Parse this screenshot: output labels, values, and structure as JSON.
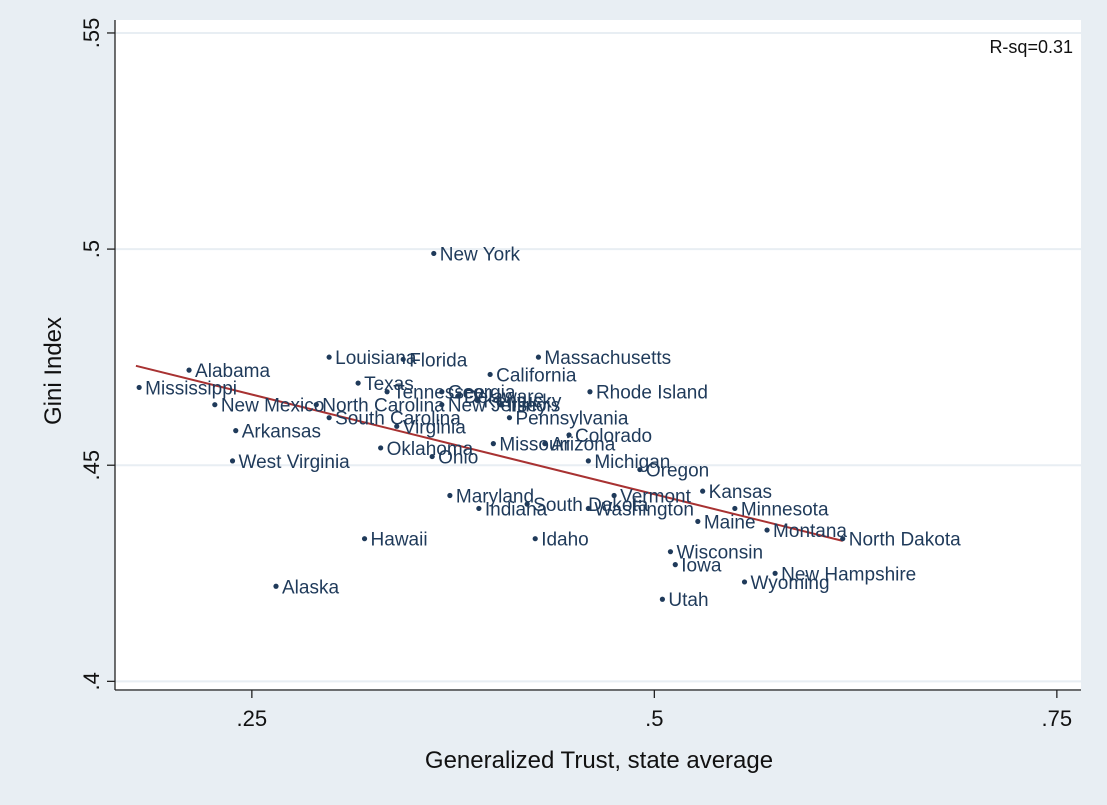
{
  "chart_data": {
    "type": "scatter",
    "xlabel": "Generalized Trust, state average",
    "ylabel": "Gini Index",
    "annotation": "R-sq=0.31",
    "xlim": [
      0.165,
      0.765
    ],
    "ylim": [
      0.398,
      0.553
    ],
    "xticks": [
      {
        "value": 0.25,
        "label": ".25"
      },
      {
        "value": 0.5,
        "label": ".5"
      },
      {
        "value": 0.75,
        "label": ".75"
      }
    ],
    "yticks": [
      {
        "value": 0.4,
        "label": ".4"
      },
      {
        "value": 0.45,
        "label": ".45"
      },
      {
        "value": 0.5,
        "label": ".5"
      },
      {
        "value": 0.55,
        "label": ".55"
      }
    ],
    "grid": true,
    "colors": {
      "points": "#1f3a5a",
      "fit_line": "#a83232",
      "grid": "#e8eef3",
      "background": "#ffffff"
    },
    "fit_line": {
      "x": [
        0.178,
        0.617
      ],
      "y": [
        0.473,
        0.4325
      ]
    },
    "points": [
      {
        "label": "New York",
        "x": 0.363,
        "y": 0.499
      },
      {
        "label": "Louisiana",
        "x": 0.298,
        "y": 0.475
      },
      {
        "label": "Florida",
        "x": 0.344,
        "y": 0.4745
      },
      {
        "label": "Massachusetts",
        "x": 0.428,
        "y": 0.475
      },
      {
        "label": "Alabama",
        "x": 0.211,
        "y": 0.472
      },
      {
        "label": "California",
        "x": 0.398,
        "y": 0.471
      },
      {
        "label": "Texas",
        "x": 0.316,
        "y": 0.469
      },
      {
        "label": "Mississippi",
        "x": 0.18,
        "y": 0.468
      },
      {
        "label": "Tennessee",
        "x": 0.334,
        "y": 0.467
      },
      {
        "label": "Georgia",
        "x": 0.368,
        "y": 0.467
      },
      {
        "label": "Rhode Island",
        "x": 0.46,
        "y": 0.467
      },
      {
        "label": "Delaware",
        "x": 0.378,
        "y": 0.466
      },
      {
        "label": "Kentucky",
        "x": 0.39,
        "y": 0.465
      },
      {
        "label": "New Mexico",
        "x": 0.227,
        "y": 0.464
      },
      {
        "label": "North Carolina",
        "x": 0.29,
        "y": 0.464
      },
      {
        "label": "Illinois",
        "x": 0.405,
        "y": 0.464
      },
      {
        "label": "New Jersey",
        "x": 0.368,
        "y": 0.464
      },
      {
        "label": "South Carolina",
        "x": 0.298,
        "y": 0.461
      },
      {
        "label": "Pennsylvania",
        "x": 0.41,
        "y": 0.461
      },
      {
        "label": "Virginia",
        "x": 0.34,
        "y": 0.459
      },
      {
        "label": "Arkansas",
        "x": 0.24,
        "y": 0.458
      },
      {
        "label": "Colorado",
        "x": 0.447,
        "y": 0.457
      },
      {
        "label": "Missouri",
        "x": 0.4,
        "y": 0.455
      },
      {
        "label": "Arizona",
        "x": 0.432,
        "y": 0.455
      },
      {
        "label": "Oklahoma",
        "x": 0.33,
        "y": 0.454
      },
      {
        "label": "Ohio",
        "x": 0.362,
        "y": 0.452
      },
      {
        "label": "West Virginia",
        "x": 0.238,
        "y": 0.451
      },
      {
        "label": "Michigan",
        "x": 0.459,
        "y": 0.451
      },
      {
        "label": "Oregon",
        "x": 0.491,
        "y": 0.449
      },
      {
        "label": "Kansas",
        "x": 0.53,
        "y": 0.444
      },
      {
        "label": "Maryland",
        "x": 0.373,
        "y": 0.443
      },
      {
        "label": "Vermont",
        "x": 0.475,
        "y": 0.443
      },
      {
        "label": "South Dakota",
        "x": 0.421,
        "y": 0.441
      },
      {
        "label": "Washington",
        "x": 0.459,
        "y": 0.44
      },
      {
        "label": "Indiana",
        "x": 0.391,
        "y": 0.44
      },
      {
        "label": "Minnesota",
        "x": 0.55,
        "y": 0.44
      },
      {
        "label": "Maine",
        "x": 0.527,
        "y": 0.437
      },
      {
        "label": "Montana",
        "x": 0.57,
        "y": 0.435
      },
      {
        "label": "North Dakota",
        "x": 0.617,
        "y": 0.433
      },
      {
        "label": "Hawaii",
        "x": 0.32,
        "y": 0.433
      },
      {
        "label": "Idaho",
        "x": 0.426,
        "y": 0.433
      },
      {
        "label": "Wisconsin",
        "x": 0.51,
        "y": 0.43
      },
      {
        "label": "Iowa",
        "x": 0.513,
        "y": 0.427
      },
      {
        "label": "New Hampshire",
        "x": 0.575,
        "y": 0.425
      },
      {
        "label": "Wyoming",
        "x": 0.556,
        "y": 0.423
      },
      {
        "label": "Alaska",
        "x": 0.265,
        "y": 0.422
      },
      {
        "label": "Utah",
        "x": 0.505,
        "y": 0.419
      }
    ]
  }
}
